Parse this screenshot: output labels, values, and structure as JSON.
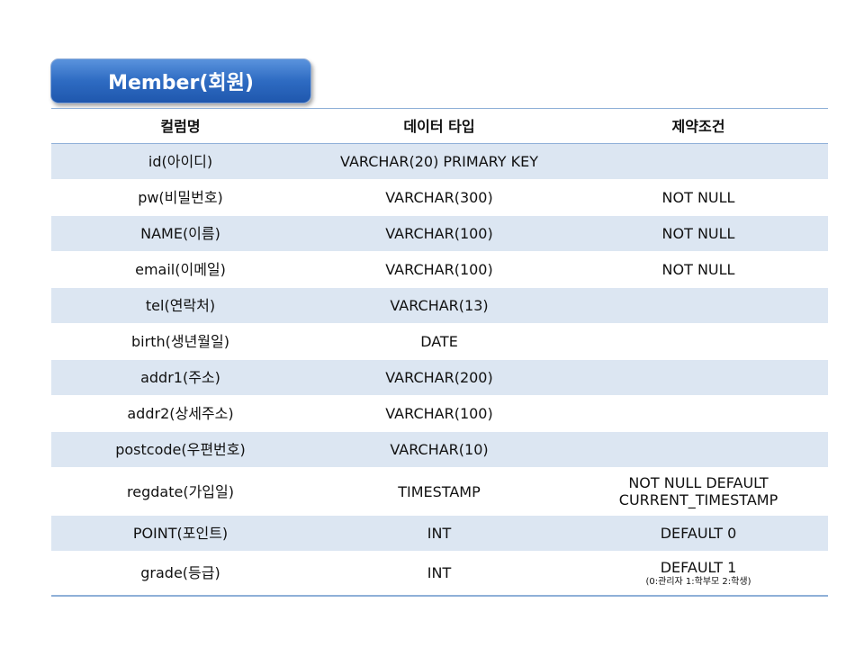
{
  "title": "Member(회원)",
  "table": {
    "headers": [
      "컬럼명",
      "데이터 타입",
      "제약조건"
    ],
    "rows": [
      {
        "column": "id(아이디)",
        "type": "VARCHAR(20) PRIMARY KEY",
        "constraint": "",
        "constraint2": "",
        "note": ""
      },
      {
        "column": "pw(비밀번호)",
        "type": "VARCHAR(300)",
        "constraint": "NOT NULL",
        "constraint2": "",
        "note": ""
      },
      {
        "column": "NAME(이름)",
        "type": "VARCHAR(100)",
        "constraint": "NOT NULL",
        "constraint2": "",
        "note": ""
      },
      {
        "column": "email(이메일)",
        "type": "VARCHAR(100)",
        "constraint": "NOT NULL",
        "constraint2": "",
        "note": ""
      },
      {
        "column": "tel(연락처)",
        "type": "VARCHAR(13)",
        "constraint": "",
        "constraint2": "",
        "note": ""
      },
      {
        "column": "birth(생년월일)",
        "type": "DATE",
        "constraint": "",
        "constraint2": "",
        "note": ""
      },
      {
        "column": "addr1(주소)",
        "type": "VARCHAR(200)",
        "constraint": "",
        "constraint2": "",
        "note": ""
      },
      {
        "column": "addr2(상세주소)",
        "type": "VARCHAR(100)",
        "constraint": "",
        "constraint2": "",
        "note": ""
      },
      {
        "column": "postcode(우편번호)",
        "type": "VARCHAR(10)",
        "constraint": "",
        "constraint2": "",
        "note": ""
      },
      {
        "column": "regdate(가입일)",
        "type": "TIMESTAMP",
        "constraint": "NOT NULL DEFAULT",
        "constraint2": "CURRENT_TIMESTAMP",
        "note": ""
      },
      {
        "column": "POINT(포인트)",
        "type": "INT",
        "constraint": "DEFAULT 0",
        "constraint2": "",
        "note": ""
      },
      {
        "column": "grade(등급)",
        "type": "INT",
        "constraint": "DEFAULT 1",
        "constraint2": "",
        "note": "(0:관리자 1:학부모 2:학생)"
      }
    ]
  }
}
